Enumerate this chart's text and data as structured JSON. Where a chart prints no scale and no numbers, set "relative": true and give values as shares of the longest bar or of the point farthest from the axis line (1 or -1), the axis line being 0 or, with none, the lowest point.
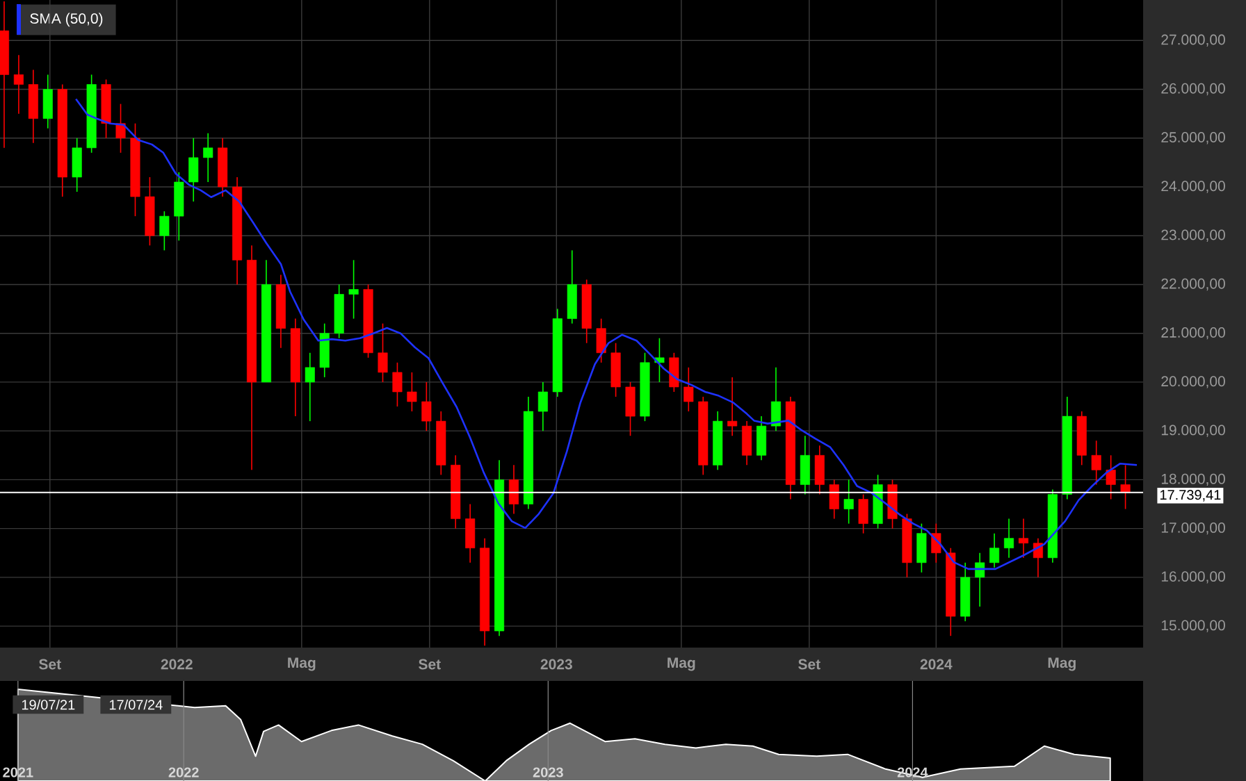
{
  "chart_data": [
    {
      "type": "candlestick",
      "xlim": [
        "2021-07-15",
        "2024-07-18"
      ],
      "ylim": [
        14560,
        27830
      ],
      "xticks": [
        {
          "value": "2021-09-01",
          "label": "Set"
        },
        {
          "value": "2022-01-01",
          "label": "2022"
        },
        {
          "value": "2022-05-01",
          "label": "Mag"
        },
        {
          "value": "2022-09-01",
          "label": "Set"
        },
        {
          "value": "2023-01-01",
          "label": "2023"
        },
        {
          "value": "2023-05-01",
          "label": "Mag"
        },
        {
          "value": "2023-09-01",
          "label": "Set"
        },
        {
          "value": "2024-01-01",
          "label": "2024"
        },
        {
          "value": "2024-05-01",
          "label": "Mag"
        }
      ],
      "yticks": [
        {
          "value": 15000,
          "label": "15.000,00"
        },
        {
          "value": 16000,
          "label": "16.000,00"
        },
        {
          "value": 17000,
          "label": "17.000,00"
        },
        {
          "value": 18000,
          "label": "18.000,00"
        },
        {
          "value": 19000,
          "label": "19.000,00"
        },
        {
          "value": 20000,
          "label": "20.000,00"
        },
        {
          "value": 21000,
          "label": "21.000,00"
        },
        {
          "value": 22000,
          "label": "22.000,00"
        },
        {
          "value": 23000,
          "label": "23.000,00"
        },
        {
          "value": 24000,
          "label": "24.000,00"
        },
        {
          "value": 25000,
          "label": "25.000,00"
        },
        {
          "value": 26000,
          "label": "26.000,00"
        },
        {
          "value": 27000,
          "label": "27.000,00"
        }
      ],
      "grid": true,
      "legend": "top left",
      "ref_lines": [
        {
          "axis": "y",
          "value": 17739.41,
          "label": "17.739,41",
          "color": "#ffffff"
        }
      ],
      "series": [
        {
          "type": "candlestick",
          "x": [
            "2021-07-19",
            "2021-08-02",
            "2021-08-16",
            "2021-08-30",
            "2021-09-13",
            "2021-09-27",
            "2021-10-11",
            "2021-10-25",
            "2021-11-08",
            "2021-11-22",
            "2021-12-06",
            "2021-12-20",
            "2022-01-03",
            "2022-01-17",
            "2022-01-31",
            "2022-02-14",
            "2022-02-28",
            "2022-03-14",
            "2022-03-28",
            "2022-04-11",
            "2022-04-25",
            "2022-05-09",
            "2022-05-23",
            "2022-06-06",
            "2022-06-20",
            "2022-07-04",
            "2022-07-18",
            "2022-08-01",
            "2022-08-15",
            "2022-08-29",
            "2022-09-12",
            "2022-09-26",
            "2022-10-10",
            "2022-10-24",
            "2022-11-07",
            "2022-11-21",
            "2022-12-05",
            "2022-12-19",
            "2023-01-02",
            "2023-01-16",
            "2023-01-30",
            "2023-02-13",
            "2023-02-27",
            "2023-03-13",
            "2023-03-27",
            "2023-04-10",
            "2023-04-24",
            "2023-05-08",
            "2023-05-22",
            "2023-06-05",
            "2023-06-19",
            "2023-07-03",
            "2023-07-17",
            "2023-07-31",
            "2023-08-14",
            "2023-08-28",
            "2023-09-11",
            "2023-09-25",
            "2023-10-09",
            "2023-10-23",
            "2023-11-06",
            "2023-11-20",
            "2023-12-04",
            "2023-12-18",
            "2024-01-01",
            "2024-01-15",
            "2024-01-29",
            "2024-02-12",
            "2024-02-26",
            "2024-03-11",
            "2024-03-25",
            "2024-04-08",
            "2024-04-22",
            "2024-05-06",
            "2024-05-20",
            "2024-06-03",
            "2024-06-17",
            "2024-07-01"
          ],
          "ohlc": [
            [
              27200,
              27800,
              24800,
              26300
            ],
            [
              26300,
              26700,
              25500,
              26100
            ],
            [
              26100,
              26400,
              24900,
              25400
            ],
            [
              25400,
              26300,
              25200,
              26000
            ],
            [
              26000,
              26100,
              23800,
              24200
            ],
            [
              24200,
              25000,
              23900,
              24800
            ],
            [
              24800,
              26300,
              24700,
              26100
            ],
            [
              26100,
              26200,
              25000,
              25300
            ],
            [
              25300,
              25700,
              24700,
              25000
            ],
            [
              25000,
              25300,
              23400,
              23800
            ],
            [
              23800,
              24200,
              22800,
              23000
            ],
            [
              23000,
              23500,
              22700,
              23400
            ],
            [
              23400,
              24300,
              22900,
              24100
            ],
            [
              24100,
              25000,
              23700,
              24600
            ],
            [
              24600,
              25100,
              24100,
              24800
            ],
            [
              24800,
              25000,
              23800,
              24000
            ],
            [
              24000,
              24200,
              22000,
              22500
            ],
            [
              22500,
              22800,
              18200,
              20000
            ],
            [
              20000,
              22500,
              20000,
              22000
            ],
            [
              22000,
              22200,
              20700,
              21100
            ],
            [
              21100,
              21300,
              19300,
              20000
            ],
            [
              20000,
              20600,
              19200,
              20300
            ],
            [
              20300,
              21200,
              20100,
              21000
            ],
            [
              21000,
              22000,
              20900,
              21800
            ],
            [
              21800,
              22500,
              21300,
              21900
            ],
            [
              21900,
              22000,
              20500,
              20600
            ],
            [
              20600,
              21200,
              20000,
              20200
            ],
            [
              20200,
              20400,
              19500,
              19800
            ],
            [
              19800,
              20200,
              19400,
              19600
            ],
            [
              19600,
              20000,
              19000,
              19200
            ],
            [
              19200,
              19400,
              18100,
              18300
            ],
            [
              18300,
              18500,
              17000,
              17200
            ],
            [
              17200,
              17500,
              16300,
              16600
            ],
            [
              16600,
              16800,
              14600,
              14900
            ],
            [
              14900,
              18400,
              14800,
              18000
            ],
            [
              18000,
              18300,
              17300,
              17500
            ],
            [
              17500,
              19700,
              17400,
              19400
            ],
            [
              19400,
              20000,
              19000,
              19800
            ],
            [
              19800,
              21500,
              19700,
              21300
            ],
            [
              21300,
              22700,
              21200,
              22000
            ],
            [
              22000,
              22100,
              20800,
              21100
            ],
            [
              21100,
              21300,
              20400,
              20600
            ],
            [
              20600,
              20800,
              19700,
              19900
            ],
            [
              19900,
              20000,
              18900,
              19300
            ],
            [
              19300,
              20600,
              19200,
              20400
            ],
            [
              20400,
              20900,
              20000,
              20500
            ],
            [
              20500,
              20600,
              19800,
              19900
            ],
            [
              19900,
              20300,
              19400,
              19600
            ],
            [
              19600,
              19700,
              18100,
              18300
            ],
            [
              18300,
              19400,
              18200,
              19200
            ],
            [
              19200,
              20100,
              18900,
              19100
            ],
            [
              19100,
              19200,
              18300,
              18500
            ],
            [
              18500,
              19300,
              18400,
              19100
            ],
            [
              19100,
              20300,
              19000,
              19600
            ],
            [
              19600,
              19700,
              17600,
              17900
            ],
            [
              17900,
              18900,
              17700,
              18500
            ],
            [
              18500,
              18700,
              17700,
              17900
            ],
            [
              17900,
              18000,
              17200,
              17400
            ],
            [
              17400,
              18000,
              17100,
              17600
            ],
            [
              17600,
              17700,
              16900,
              17100
            ],
            [
              17100,
              18100,
              17000,
              17900
            ],
            [
              17900,
              18000,
              17000,
              17200
            ],
            [
              17200,
              17300,
              16000,
              16300
            ],
            [
              16300,
              17100,
              16100,
              16900
            ],
            [
              16900,
              17100,
              16300,
              16500
            ],
            [
              16500,
              16600,
              14800,
              15200
            ],
            [
              15200,
              16300,
              15100,
              16000
            ],
            [
              16000,
              16500,
              15400,
              16300
            ],
            [
              16300,
              16900,
              16200,
              16600
            ],
            [
              16600,
              17200,
              16400,
              16800
            ],
            [
              16800,
              17200,
              16400,
              16700
            ],
            [
              16700,
              16800,
              16000,
              16400
            ],
            [
              16400,
              17800,
              16300,
              17700
            ],
            [
              17700,
              19700,
              17600,
              19300
            ],
            [
              19300,
              19400,
              18300,
              18500
            ],
            [
              18500,
              18800,
              17900,
              18200
            ],
            [
              18200,
              18500,
              17600,
              17900
            ],
            [
              17900,
              18300,
              17400,
              17739.41
            ]
          ],
          "colors": [
            "#ff0000",
            "#ff0000",
            "#ff0000",
            "#00ff00",
            "#ff0000",
            "#00ff00",
            "#00ff00",
            "#ff0000",
            "#ff0000",
            "#ff0000",
            "#ff0000",
            "#00ff00",
            "#00ff00",
            "#00ff00",
            "#00ff00",
            "#ff0000",
            "#ff0000",
            "#ff0000",
            "#00ff00",
            "#ff0000",
            "#ff0000",
            "#00ff00",
            "#00ff00",
            "#00ff00",
            "#00ff00",
            "#ff0000",
            "#ff0000",
            "#ff0000",
            "#ff0000",
            "#ff0000",
            "#ff0000",
            "#ff0000",
            "#ff0000",
            "#ff0000",
            "#00ff00",
            "#ff0000",
            "#00ff00",
            "#00ff00",
            "#00ff00",
            "#00ff00",
            "#ff0000",
            "#ff0000",
            "#ff0000",
            "#ff0000",
            "#00ff00",
            "#00ff00",
            "#ff0000",
            "#ff0000",
            "#ff0000",
            "#00ff00",
            "#ff0000",
            "#ff0000",
            "#00ff00",
            "#00ff00",
            "#ff0000",
            "#00ff00",
            "#ff0000",
            "#ff0000",
            "#00ff00",
            "#ff0000",
            "#00ff00",
            "#ff0000",
            "#ff0000",
            "#00ff00",
            "#ff0000",
            "#ff0000",
            "#00ff00",
            "#00ff00",
            "#00ff00",
            "#00ff00",
            "#ff0000",
            "#ff0000",
            "#00ff00",
            "#00ff00",
            "#ff0000",
            "#ff0000",
            "#ff0000",
            "#ff0000"
          ]
        },
        {
          "type": "line",
          "name": "SMA (50,0)",
          "color": "#1e32ff",
          "x": [
            "2021-09-26",
            "2021-10-07",
            "2021-10-16",
            "2021-10-29",
            "2021-11-11",
            "2021-11-25",
            "2021-12-08",
            "2021-12-19",
            "2021-12-31",
            "2022-01-13",
            "2022-01-24",
            "2022-02-03",
            "2022-02-17",
            "2022-03-02",
            "2022-03-15",
            "2022-03-28",
            "2022-04-11",
            "2022-04-20",
            "2022-05-03",
            "2022-05-17",
            "2022-05-30",
            "2022-06-12",
            "2022-06-26",
            "2022-07-09",
            "2022-07-22",
            "2022-08-04",
            "2022-08-18",
            "2022-08-31",
            "2022-09-13",
            "2022-09-27",
            "2022-10-10",
            "2022-10-23",
            "2022-11-06",
            "2022-11-19",
            "2022-12-02",
            "2022-12-15",
            "2022-12-29",
            "2023-01-11",
            "2023-01-24",
            "2023-02-07",
            "2023-02-20",
            "2023-03-05",
            "2023-03-19",
            "2023-04-01",
            "2023-04-14",
            "2023-04-27",
            "2023-05-11",
            "2023-05-24",
            "2023-06-06",
            "2023-06-20",
            "2023-07-03",
            "2023-07-10",
            "2023-07-23",
            "2023-08-12",
            "2023-08-25",
            "2023-09-07",
            "2023-09-21",
            "2023-10-04",
            "2023-10-17",
            "2023-10-31",
            "2023-11-13",
            "2023-11-26",
            "2023-12-10",
            "2023-12-23",
            "2024-01-05",
            "2024-01-18",
            "2024-02-01",
            "2024-02-27",
            "2024-03-25",
            "2024-04-14",
            "2024-05-04",
            "2024-05-17",
            "2024-05-30",
            "2024-06-13",
            "2024-06-26",
            "2024-07-12"
          ],
          "values": [
            25800,
            25480,
            25400,
            25300,
            25270,
            24960,
            24870,
            24700,
            24270,
            24040,
            23930,
            23790,
            23930,
            23700,
            23280,
            22850,
            22420,
            21850,
            21280,
            20850,
            20880,
            20850,
            20900,
            21000,
            21110,
            21000,
            20710,
            20490,
            20000,
            19490,
            18860,
            18150,
            17520,
            17150,
            17010,
            17300,
            17720,
            18580,
            19580,
            20370,
            20800,
            20970,
            20850,
            20570,
            20280,
            20060,
            19940,
            19800,
            19720,
            19580,
            19350,
            19210,
            19150,
            19210,
            19010,
            18840,
            18670,
            18300,
            17870,
            17730,
            17520,
            17300,
            17100,
            16960,
            16680,
            16310,
            16170,
            16170,
            16450,
            16680,
            17150,
            17580,
            17870,
            18150,
            18330,
            18300
          ]
        }
      ]
    },
    {
      "type": "area",
      "relative": true,
      "color": "#6b6b6b",
      "xlim": [
        "2021-07-01",
        "2024-11-30"
      ],
      "xticks": [
        {
          "value": "2021-07-19",
          "label": "2021"
        },
        {
          "value": "2022-01-01",
          "label": "2022"
        },
        {
          "value": "2023-01-01",
          "label": "2023"
        },
        {
          "value": "2024-01-01",
          "label": "2024"
        }
      ],
      "grid": "x",
      "tick_labels": "x",
      "annotations": [
        "19/07/21",
        "17/07/24"
      ],
      "x": [
        "2021-07-19",
        "2022-01-12",
        "2022-02-12",
        "2022-02-27",
        "2022-03-14",
        "2022-03-22",
        "2022-04-06",
        "2022-04-29",
        "2022-05-29",
        "2022-06-25",
        "2022-07-29",
        "2022-08-28",
        "2022-09-28",
        "2022-10-30",
        "2022-11-20",
        "2022-12-13",
        "2023-01-04",
        "2023-01-23",
        "2023-02-27",
        "2023-03-29",
        "2023-04-28",
        "2023-05-29",
        "2023-06-28",
        "2023-07-25",
        "2023-08-20",
        "2023-09-27",
        "2023-10-28",
        "2023-12-05",
        "2024-01-11",
        "2024-02-18",
        "2024-04-12",
        "2024-05-12",
        "2024-06-11",
        "2024-07-17"
      ],
      "values": [
        1.0,
        0.8,
        0.82,
        0.67,
        0.27,
        0.54,
        0.61,
        0.43,
        0.55,
        0.61,
        0.49,
        0.4,
        0.22,
        0.0,
        0.22,
        0.4,
        0.55,
        0.63,
        0.43,
        0.46,
        0.4,
        0.36,
        0.4,
        0.38,
        0.29,
        0.27,
        0.29,
        0.13,
        0.04,
        0.13,
        0.16,
        0.38,
        0.29,
        0.25
      ]
    }
  ]
}
